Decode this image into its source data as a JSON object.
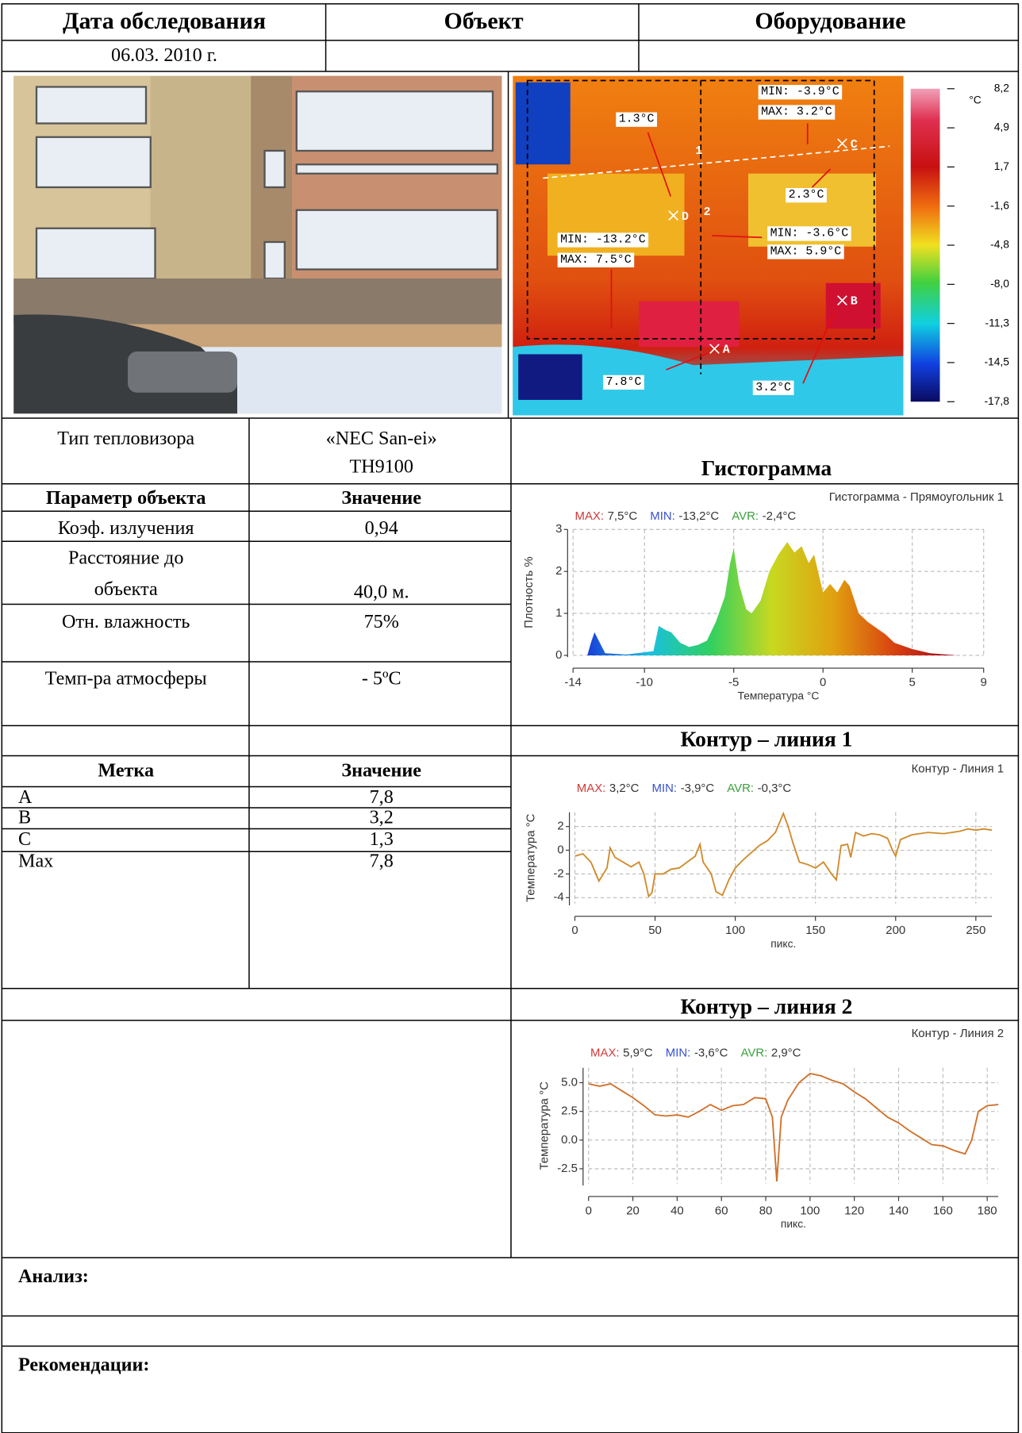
{
  "header": {
    "date_label": "Дата обследования",
    "object_label": "Объект",
    "equipment_label": "Оборудование",
    "date": "06.03. 2010 г."
  },
  "thermogram": {
    "annotations": [
      "MIN: -3.9°C",
      "MAX: 3.2°C",
      "1.3°C",
      "2.3°C",
      "MIN: -13.2°C",
      "MAX: 7.5°C",
      "MIN: -3.6°C",
      "MAX: 5.9°C",
      "7.8°C",
      "3.2°C"
    ],
    "markers": [
      "C",
      "D",
      "B",
      "A"
    ],
    "lines": [
      "1",
      "2"
    ],
    "scale_unit": "°C",
    "scale_labels": [
      "8,2",
      "4,9",
      "1,7",
      "-1,6",
      "-4,8",
      "-8,0",
      "-11,3",
      "-14,5",
      "-17,8"
    ]
  },
  "camera": {
    "label": "Тип тепловизора",
    "value_lines": [
      "«NEC San-ei»",
      "TH9100"
    ]
  },
  "params": {
    "header": [
      "Параметр объекта",
      "Значение"
    ],
    "rows": [
      {
        "label_lines": [
          "Коэф. излучения"
        ],
        "value": "0,94"
      },
      {
        "label_lines": [
          "Расстояние до",
          "объекта"
        ],
        "value": "40,0 м."
      },
      {
        "label_lines": [
          "Отн. влажность"
        ],
        "value": "75%"
      },
      {
        "label_lines": [
          "Темп-ра атмосферы"
        ],
        "value": "- 5ºC"
      }
    ]
  },
  "marks": {
    "header": [
      "Метка",
      "Значение"
    ],
    "rows": [
      [
        "A",
        "7,8"
      ],
      [
        "B",
        "3,2"
      ],
      [
        "C",
        "1,3"
      ],
      [
        "Max",
        "7,8"
      ]
    ]
  },
  "analysis_label": "Анализ:",
  "recommendations_label": "Рекомендации:",
  "chart_data": [
    {
      "type": "area",
      "heading": "Гистограмма",
      "title": "Гистограмма - Прямоугольник 1",
      "stats": [
        {
          "label": "MAX:",
          "value": "7,5°C",
          "color": "#d03a3a"
        },
        {
          "label": "MIN:",
          "value": "-13,2°C",
          "color": "#3a52d0"
        },
        {
          "label": "AVR:",
          "value": "-2,4°C",
          "color": "#3aa03a"
        }
      ],
      "xlabel": "Температура °C",
      "ylabel": "Плотность %",
      "gradient": [
        "#1a3fd8",
        "#19c0e0",
        "#30d060",
        "#c8d820",
        "#e0a010",
        "#d84010",
        "#a00020"
      ],
      "grid": true,
      "x": [
        -13.2,
        -13,
        -12.8,
        -12.5,
        -12.2,
        -11,
        -9.5,
        -9.2,
        -8.8,
        -8.5,
        -8,
        -7.5,
        -7,
        -6.5,
        -6,
        -5.5,
        -5.2,
        -5,
        -4.7,
        -4.3,
        -4,
        -3.5,
        -3,
        -2.5,
        -2,
        -1.6,
        -1.2,
        -0.8,
        -0.5,
        0,
        0.4,
        0.8,
        1.2,
        1.5,
        2,
        2.5,
        3,
        3.5,
        4,
        5,
        6,
        7.5
      ],
      "values": [
        0,
        0.3,
        0.55,
        0.3,
        0.05,
        0.02,
        0.1,
        0.7,
        0.6,
        0.55,
        0.3,
        0.2,
        0.25,
        0.35,
        0.8,
        1.4,
        2.2,
        2.55,
        1.7,
        1.1,
        1.0,
        1.3,
        2.0,
        2.4,
        2.7,
        2.45,
        2.6,
        2.2,
        2.4,
        1.5,
        1.7,
        1.5,
        1.8,
        1.65,
        1.0,
        0.8,
        0.65,
        0.5,
        0.3,
        0.15,
        0.05,
        0
      ],
      "xlim": [
        -14,
        9
      ],
      "ylim": [
        0,
        3
      ],
      "xticks": [
        -14,
        -10,
        -5,
        0,
        5,
        9
      ],
      "yticks": [
        0,
        1,
        2,
        3
      ]
    },
    {
      "type": "line",
      "heading": "Контур – линия 1",
      "title": "Контур - Линия 1",
      "stats": [
        {
          "label": "MAX:",
          "value": "3,2°C",
          "color": "#d03a3a"
        },
        {
          "label": "MIN:",
          "value": "-3,9°C",
          "color": "#3a52d0"
        },
        {
          "label": "AVR:",
          "value": "-0,3°C",
          "color": "#3aa03a"
        }
      ],
      "xlabel": "пикс.",
      "ylabel": "Температура °C",
      "color": "#d08a2a",
      "grid": true,
      "x": [
        0,
        5,
        10,
        15,
        20,
        22,
        25,
        30,
        35,
        40,
        43,
        46,
        48,
        50,
        55,
        60,
        65,
        70,
        75,
        78,
        80,
        85,
        88,
        92,
        96,
        100,
        105,
        110,
        115,
        120,
        125,
        130,
        133,
        136,
        140,
        145,
        150,
        155,
        160,
        163,
        166,
        170,
        172,
        175,
        180,
        185,
        190,
        195,
        198,
        200,
        203,
        210,
        220,
        230,
        240,
        245,
        250,
        255,
        260
      ],
      "values": [
        -0.5,
        -0.3,
        -1.0,
        -2.6,
        -1.5,
        0.2,
        -0.6,
        -1.0,
        -1.4,
        -1.0,
        -2.0,
        -3.9,
        -3.6,
        -2.0,
        -2.0,
        -1.6,
        -1.5,
        -1.0,
        -0.5,
        0.5,
        -1.0,
        -2.0,
        -3.5,
        -3.8,
        -2.5,
        -1.5,
        -0.8,
        -0.2,
        0.4,
        0.8,
        1.5,
        3.1,
        2.0,
        0.6,
        -1.0,
        -1.2,
        -1.5,
        -1.0,
        -2.0,
        -2.5,
        0.4,
        0.5,
        -0.6,
        1.5,
        1.2,
        1.4,
        1.3,
        1.0,
        0.0,
        -0.5,
        0.9,
        1.3,
        1.5,
        1.4,
        1.6,
        1.8,
        1.7,
        1.8,
        1.7
      ],
      "xlim": [
        0,
        260
      ],
      "ylim": [
        -4.5,
        3.2
      ],
      "xticks": [
        0,
        50,
        100,
        150,
        200,
        250
      ],
      "yticks": [
        -4,
        -2,
        0,
        2
      ]
    },
    {
      "type": "line",
      "heading": "Контур – линия 2",
      "title": "Контур - Линия 2",
      "stats": [
        {
          "label": "MAX:",
          "value": "5,9°C",
          "color": "#d03a3a"
        },
        {
          "label": "MIN:",
          "value": "-3,6°C",
          "color": "#3a52d0"
        },
        {
          "label": "AVR:",
          "value": "2,9°C",
          "color": "#3aa03a"
        }
      ],
      "xlabel": "пикс.",
      "ylabel": "Температура °C",
      "color": "#d0702a",
      "grid": true,
      "x": [
        0,
        5,
        10,
        15,
        20,
        25,
        30,
        35,
        40,
        45,
        50,
        55,
        60,
        65,
        70,
        75,
        80,
        83,
        85,
        87,
        90,
        95,
        100,
        105,
        110,
        115,
        120,
        125,
        130,
        135,
        140,
        145,
        150,
        155,
        160,
        165,
        170,
        173,
        176,
        180,
        185
      ],
      "values": [
        4.9,
        4.7,
        4.9,
        4.3,
        3.7,
        3.0,
        2.2,
        2.1,
        2.2,
        2.0,
        2.5,
        3.1,
        2.6,
        3.0,
        3.1,
        3.7,
        3.6,
        2.0,
        -3.6,
        2.0,
        3.5,
        5.0,
        5.8,
        5.6,
        5.2,
        4.9,
        4.2,
        3.6,
        2.8,
        2.0,
        1.5,
        0.8,
        0.2,
        -0.4,
        -0.5,
        -0.9,
        -1.2,
        0,
        2.5,
        3.0,
        3.1
      ],
      "xlim": [
        0,
        185
      ],
      "ylim": [
        -3.8,
        6.3
      ],
      "xticks": [
        0,
        20,
        40,
        60,
        80,
        100,
        120,
        140,
        160,
        180
      ],
      "yticks": [
        {
          "value": 5,
          "label": "5.0"
        },
        {
          "value": 2.5,
          "label": "2.5"
        },
        {
          "value": 0,
          "label": "0.0"
        },
        {
          "value": -2.5,
          "label": "-2.5"
        }
      ]
    }
  ]
}
